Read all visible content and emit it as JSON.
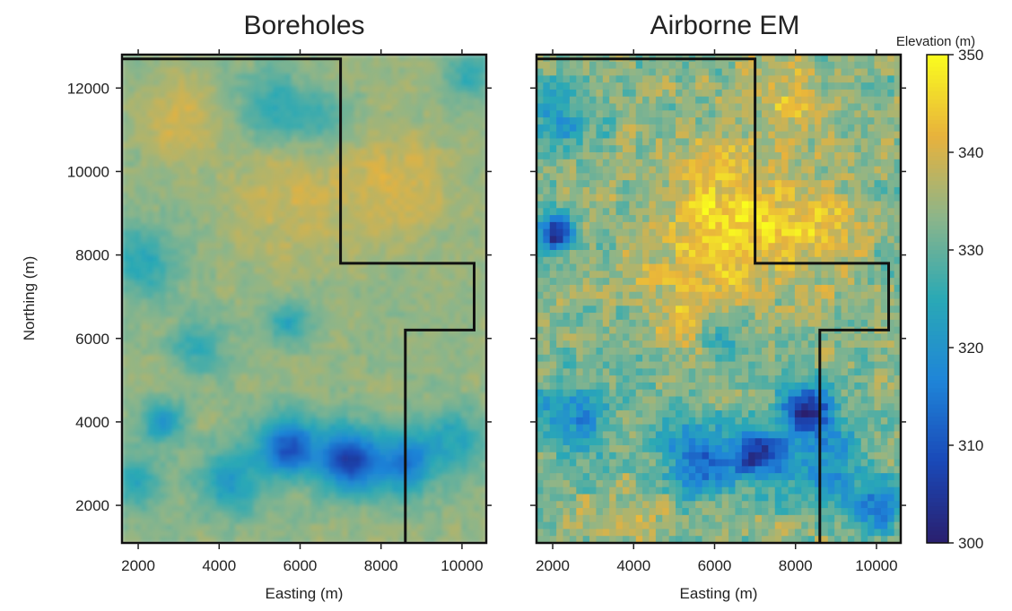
{
  "chart_data": [
    {
      "type": "heatmap",
      "title": "Boreholes",
      "xlabel": "Easting (m)",
      "ylabel": "Northing (m)",
      "xlim": [
        1600,
        10600
      ],
      "ylim": [
        1100,
        12800
      ],
      "xticks": [
        2000,
        4000,
        6000,
        8000,
        10000
      ],
      "yticks": [
        2000,
        4000,
        6000,
        8000,
        10000,
        12000
      ],
      "style": "smooth",
      "boundary": [
        [
          1600,
          12700
        ],
        [
          7000,
          12700
        ],
        [
          7000,
          7800
        ],
        [
          10300,
          7800
        ],
        [
          10300,
          6200
        ],
        [
          8600,
          6200
        ],
        [
          8600,
          1100
        ]
      ],
      "field": {
        "base": 334,
        "anomalies": [
          {
            "x": 5700,
            "y": 3400,
            "r": 700,
            "dz": -24
          },
          {
            "x": 7200,
            "y": 3100,
            "r": 750,
            "dz": -28
          },
          {
            "x": 8600,
            "y": 3000,
            "r": 700,
            "dz": -18
          },
          {
            "x": 2600,
            "y": 4000,
            "r": 500,
            "dz": -14
          },
          {
            "x": 4300,
            "y": 2600,
            "r": 800,
            "dz": -12
          },
          {
            "x": 2000,
            "y": 7800,
            "r": 900,
            "dz": -9
          },
          {
            "x": 5300,
            "y": 11500,
            "r": 900,
            "dz": -8
          },
          {
            "x": 6500,
            "y": 11200,
            "r": 700,
            "dz": -7
          },
          {
            "x": 10200,
            "y": 12300,
            "r": 700,
            "dz": -8
          },
          {
            "x": 3500,
            "y": 5800,
            "r": 700,
            "dz": -8
          },
          {
            "x": 5700,
            "y": 6400,
            "r": 500,
            "dz": -10
          },
          {
            "x": 9800,
            "y": 3500,
            "r": 800,
            "dz": -10
          },
          {
            "x": 1900,
            "y": 2500,
            "r": 700,
            "dz": -9
          },
          {
            "x": 5800,
            "y": 9400,
            "r": 1500,
            "dz": 5
          },
          {
            "x": 8400,
            "y": 9600,
            "r": 1300,
            "dz": 6
          },
          {
            "x": 3000,
            "y": 11300,
            "r": 900,
            "dz": 6
          }
        ]
      }
    },
    {
      "type": "heatmap",
      "title": "Airborne EM",
      "xlabel": "Easting (m)",
      "xlim": [
        1600,
        10600
      ],
      "ylim": [
        1100,
        12800
      ],
      "xticks": [
        2000,
        4000,
        6000,
        8000,
        10000
      ],
      "yticks": [
        2000,
        4000,
        6000,
        8000,
        10000,
        12000
      ],
      "style": "pixelated",
      "grid": [
        55,
        70
      ],
      "boundary": [
        [
          1600,
          12700
        ],
        [
          7000,
          12700
        ],
        [
          7000,
          7800
        ],
        [
          10300,
          7800
        ],
        [
          10300,
          6200
        ],
        [
          8600,
          6200
        ],
        [
          8600,
          1100
        ]
      ],
      "field": {
        "base": 333,
        "anomalies": [
          {
            "x": 6400,
            "y": 8800,
            "r": 1800,
            "dz": 13
          },
          {
            "x": 8700,
            "y": 8600,
            "r": 1000,
            "dz": 9
          },
          {
            "x": 5000,
            "y": 6800,
            "r": 900,
            "dz": 6
          },
          {
            "x": 7800,
            "y": 11900,
            "r": 900,
            "dz": 8
          },
          {
            "x": 2100,
            "y": 8500,
            "r": 450,
            "dz": -30
          },
          {
            "x": 2200,
            "y": 11300,
            "r": 900,
            "dz": -12
          },
          {
            "x": 8300,
            "y": 4300,
            "r": 600,
            "dz": -30
          },
          {
            "x": 7100,
            "y": 3200,
            "r": 650,
            "dz": -26
          },
          {
            "x": 5600,
            "y": 3100,
            "r": 900,
            "dz": -20
          },
          {
            "x": 8700,
            "y": 3000,
            "r": 900,
            "dz": -15
          },
          {
            "x": 2500,
            "y": 4100,
            "r": 900,
            "dz": -15
          },
          {
            "x": 10000,
            "y": 2000,
            "r": 700,
            "dz": -15
          },
          {
            "x": 6200,
            "y": 6000,
            "r": 500,
            "dz": -8
          },
          {
            "x": 3900,
            "y": 1800,
            "r": 900,
            "dz": 5
          }
        ]
      }
    }
  ],
  "colorbar": {
    "title": "Elevation (m)",
    "range": [
      300,
      350
    ],
    "ticks": [
      300,
      310,
      320,
      330,
      340,
      350
    ],
    "colors": [
      "#2a1f6e",
      "#1a49b8",
      "#1f85d8",
      "#2aa9b5",
      "#8cb58a",
      "#e8b23c",
      "#fafd1e"
    ]
  }
}
